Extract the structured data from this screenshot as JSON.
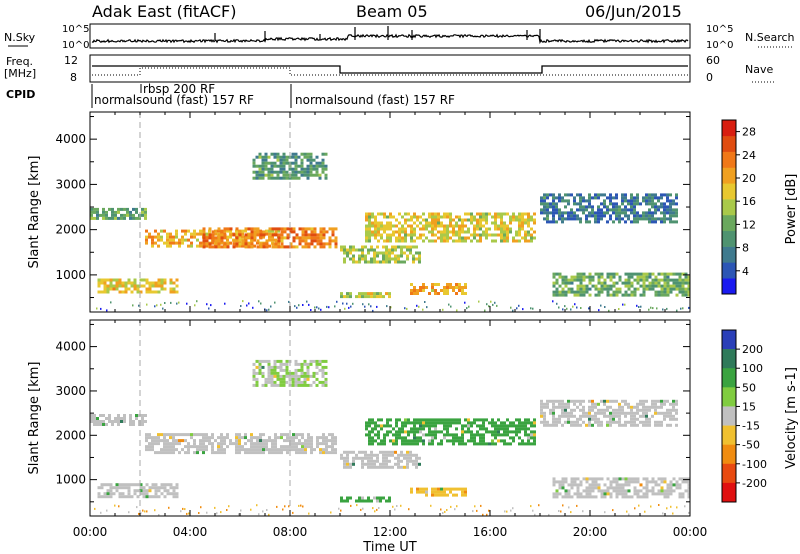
{
  "header": {
    "radar": "Adak East (fitACF)",
    "beam": "Beam 05",
    "date": "06/Jun/2015"
  },
  "top_panels": {
    "nsky_label": "N.Sky",
    "nsearch_label": "N.Search",
    "noise_ticks_left": [
      "10^5",
      "10^0"
    ],
    "noise_ticks_right": [
      "10^5",
      "10^0"
    ],
    "freq_label_1": "Freq.",
    "freq_label_2": "[MHz]",
    "freq_ticks": [
      "12",
      "8"
    ],
    "nave_label": "Nave",
    "nave_ticks": [
      "60",
      "0"
    ],
    "cpid_label": "CPID",
    "cpid_segments": [
      {
        "label": "rbsp 200 RF",
        "start_h": 1.95,
        "row": 0
      },
      {
        "label": "normalsound (fast) 157 RF",
        "start_h": 0.05,
        "row": 1
      },
      {
        "label": "normalsound (fast) 157 RF",
        "start_h": 8.0,
        "row": 1
      }
    ]
  },
  "chart_data": [
    {
      "type": "heatmap",
      "title": "Power",
      "ylabel": "Slant Range [km]",
      "xlabel": "Time UT",
      "x_ticks": [
        "00:00",
        "04:00",
        "08:00",
        "12:00",
        "16:00",
        "20:00",
        "00:00"
      ],
      "x_range_hours": [
        0,
        24
      ],
      "y_ticks": [
        "1000",
        "2000",
        "3000",
        "4000"
      ],
      "y_range_km": [
        180,
        4600
      ],
      "colorbar": {
        "label": "Power [dB]",
        "ticks": [
          "4",
          "8",
          "12",
          "16",
          "20",
          "24",
          "28"
        ],
        "range": [
          0,
          30
        ],
        "colors": [
          "#1a1af0",
          "#2c56b5",
          "#3f7a8e",
          "#4f9370",
          "#6aa85e",
          "#a9c94a",
          "#e8c830",
          "#f0a020",
          "#f07818",
          "#e04c10",
          "#d81e10"
        ]
      },
      "echo_regions": [
        {
          "t0": 0.0,
          "t1": 2.2,
          "r0": 2220,
          "r1": 2480,
          "value": 11
        },
        {
          "t0": 2.2,
          "t1": 7.5,
          "r0": 1620,
          "r1": 2000,
          "value": 20
        },
        {
          "t0": 4.5,
          "t1": 9.8,
          "r0": 1650,
          "r1": 2050,
          "value": 23
        },
        {
          "t0": 6.5,
          "t1": 9.5,
          "r0": 3150,
          "r1": 3700,
          "value": 10
        },
        {
          "t0": 0.3,
          "t1": 3.5,
          "r0": 620,
          "r1": 920,
          "value": 18
        },
        {
          "t0": 10.0,
          "t1": 13.2,
          "r0": 1300,
          "r1": 1650,
          "value": 15
        },
        {
          "t0": 11.0,
          "t1": 17.8,
          "r0": 1780,
          "r1": 2380,
          "value": 17
        },
        {
          "t0": 10.0,
          "t1": 12.0,
          "r0": 500,
          "r1": 620,
          "value": 16
        },
        {
          "t0": 12.8,
          "t1": 15.0,
          "r0": 620,
          "r1": 820,
          "value": 20
        },
        {
          "t0": 18.5,
          "t1": 24.0,
          "r0": 580,
          "r1": 1050,
          "value": 12
        },
        {
          "t0": 18.0,
          "t1": 23.5,
          "r0": 2200,
          "r1": 2800,
          "value": 7
        }
      ]
    },
    {
      "type": "heatmap",
      "title": "Velocity",
      "ylabel": "Slant Range [km]",
      "xlabel": "Time UT",
      "x_ticks": [
        "00:00",
        "04:00",
        "08:00",
        "12:00",
        "16:00",
        "20:00",
        "00:00"
      ],
      "x_range_hours": [
        0,
        24
      ],
      "y_ticks": [
        "1000",
        "2000",
        "3000",
        "4000"
      ],
      "y_range_km": [
        180,
        4600
      ],
      "colorbar": {
        "label": "Velocity [m s-1]",
        "ticks": [
          "200",
          "100",
          "50",
          "15",
          "-15",
          "-50",
          "-100",
          "-200"
        ],
        "colors": [
          "#2a3fb8",
          "#2f7a5a",
          "#3aa340",
          "#80cc40",
          "#c0c0c0",
          "#f0c030",
          "#f08c10",
          "#e84a10",
          "#e01010"
        ]
      },
      "echo_regions": [
        {
          "t0": 0.0,
          "t1": 2.2,
          "r0": 2220,
          "r1": 2480,
          "value": 0
        },
        {
          "t0": 2.2,
          "t1": 9.8,
          "r0": 1620,
          "r1": 2050,
          "value": 0
        },
        {
          "t0": 6.5,
          "t1": 9.5,
          "r0": 3150,
          "r1": 3700,
          "value": 5
        },
        {
          "t0": 0.3,
          "t1": 3.5,
          "r0": 620,
          "r1": 920,
          "value": 0
        },
        {
          "t0": 10.0,
          "t1": 13.2,
          "r0": 1300,
          "r1": 1650,
          "value": 0
        },
        {
          "t0": 11.0,
          "t1": 17.8,
          "r0": 1780,
          "r1": 2380,
          "value": 20
        },
        {
          "t0": 10.0,
          "t1": 12.0,
          "r0": 500,
          "r1": 620,
          "value": 30
        },
        {
          "t0": 12.8,
          "t1": 15.0,
          "r0": 620,
          "r1": 820,
          "value": -40
        },
        {
          "t0": 18.5,
          "t1": 24.0,
          "r0": 580,
          "r1": 1050,
          "value": -5
        },
        {
          "t0": 18.0,
          "t1": 23.5,
          "r0": 2200,
          "r1": 2800,
          "value": 0
        }
      ]
    }
  ]
}
